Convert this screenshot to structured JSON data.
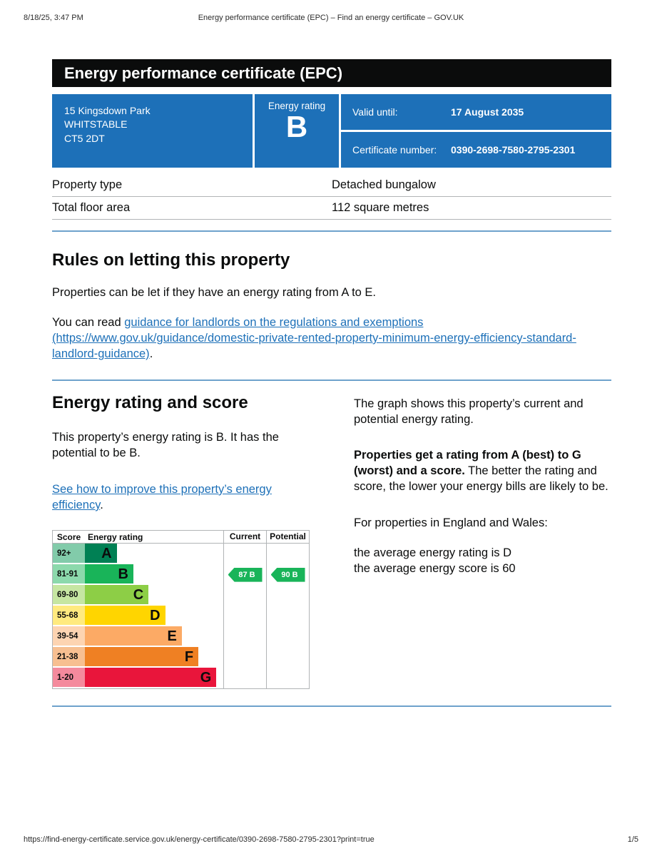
{
  "print_header": {
    "datetime": "8/18/25, 3:47 PM",
    "title": "Energy performance certificate (EPC) – Find an energy certificate – GOV.UK"
  },
  "banner": {
    "title": "Energy performance certificate (EPC)"
  },
  "summary": {
    "address_lines": [
      "15 Kingsdown Park",
      "WHITSTABLE",
      "CT5 2DT"
    ],
    "energy_rating_label": "Energy rating",
    "energy_rating": "B",
    "valid_until_label": "Valid until:",
    "valid_until_value": "17 August 2035",
    "certificate_number_label": "Certificate number:",
    "certificate_number_value": "0390-2698-7580-2795-2301",
    "box_color": "#1d70b8"
  },
  "property_details": {
    "rows": [
      {
        "label": "Property type",
        "value": "Detached bungalow"
      },
      {
        "label": "Total floor area",
        "value": "112 square metres"
      }
    ]
  },
  "letting_rules": {
    "heading": "Rules on letting this property",
    "paragraph1": "Properties can be let if they have an energy rating from A to E.",
    "paragraph2_prefix": "You can read ",
    "link_text": "guidance for landlords on the regulations and exemptions (https://www.gov.uk/guidance/domestic-private-rented-property-minimum-energy-efficiency-standard-landlord-guidance)",
    "paragraph2_suffix": "."
  },
  "rating_section": {
    "heading": "Energy rating and score",
    "summary": "This property’s energy rating is B. It has the potential to be B.",
    "improve_link": "See how to improve this property’s energy efficiency",
    "improve_suffix": ".",
    "graph_intro": "The graph shows this property’s current and potential energy rating.",
    "explainer_bold": "Properties get a rating from A (best) to G (worst) and a score.",
    "explainer_rest": " The better the rating and score, the lower your energy bills are likely to be.",
    "region_text": "For properties in England and Wales:",
    "average_rating": "the average energy rating is D",
    "average_score": "the average energy score is 60"
  },
  "chart_data": {
    "type": "bar",
    "title": "Energy rating and score chart",
    "columns": [
      "Score",
      "Energy rating",
      "Current",
      "Potential"
    ],
    "bands": [
      {
        "score": "92+",
        "letter": "A",
        "width_pct": 23,
        "bar_color": "#008054",
        "score_bg": "#82cbaa"
      },
      {
        "score": "81-91",
        "letter": "B",
        "width_pct": 35,
        "bar_color": "#19b459",
        "score_bg": "#8cd9ac"
      },
      {
        "score": "69-80",
        "letter": "C",
        "width_pct": 46,
        "bar_color": "#8dce46",
        "score_bg": "#c6e6a2"
      },
      {
        "score": "55-68",
        "letter": "D",
        "width_pct": 58,
        "bar_color": "#ffd500",
        "score_bg": "#ffea7f"
      },
      {
        "score": "39-54",
        "letter": "E",
        "width_pct": 70,
        "bar_color": "#fcaa65",
        "score_bg": "#fdd4b2"
      },
      {
        "score": "21-38",
        "letter": "F",
        "width_pct": 82,
        "bar_color": "#ef8023",
        "score_bg": "#f7bf91"
      },
      {
        "score": "1-20",
        "letter": "G",
        "width_pct": 95,
        "bar_color": "#e9153b",
        "score_bg": "#f48a9d"
      }
    ],
    "markers": [
      {
        "column": "current",
        "label": "87 B",
        "value": 87,
        "band_letter": "B",
        "row": 1,
        "color": "#19b459"
      },
      {
        "column": "potential",
        "label": "90 B",
        "value": 90,
        "band_letter": "B",
        "row": 1,
        "color": "#19b459"
      }
    ]
  },
  "print_footer": {
    "url": "https://find-energy-certificate.service.gov.uk/energy-certificate/0390-2698-7580-2795-2301?print=true",
    "page": "1/5"
  }
}
